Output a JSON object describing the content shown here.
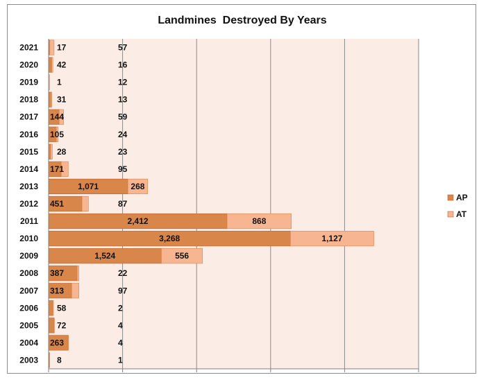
{
  "chart_data": {
    "type": "bar",
    "orientation": "horizontal",
    "stacked": true,
    "title": "Landmines  Destroyed By Years",
    "xlabel": "",
    "ylabel": "",
    "xlim": [
      0,
      5000
    ],
    "x_ticks": [
      "0",
      "1,000",
      "2,000",
      "3,000",
      "4,000",
      "5,000"
    ],
    "x_tick_values": [
      0,
      1000,
      2000,
      3000,
      4000,
      5000
    ],
    "grid": true,
    "legend_position": "right",
    "categories": [
      "2021",
      "2020",
      "2019",
      "2018",
      "2017",
      "2016",
      "2015",
      "2014",
      "2013",
      "2012",
      "2011",
      "2010",
      "2009",
      "2008",
      "2007",
      "2006",
      "2005",
      "2004",
      "2003"
    ],
    "series": [
      {
        "name": "AP",
        "color": "#d9864a",
        "values": [
          17,
          42,
          1,
          31,
          144,
          105,
          28,
          171,
          1071,
          451,
          2412,
          3268,
          1524,
          387,
          313,
          58,
          72,
          263,
          8
        ],
        "labels": [
          "17",
          "42",
          "1",
          "31",
          "144",
          "105",
          "28",
          "171",
          "1,071",
          "451",
          "2,412",
          "3,268",
          "1,524",
          "387",
          "313",
          "58",
          "72",
          "263",
          "8"
        ]
      },
      {
        "name": "AT",
        "color": "#f7b591",
        "values": [
          57,
          16,
          12,
          13,
          59,
          24,
          23,
          95,
          268,
          87,
          868,
          1127,
          556,
          22,
          97,
          2,
          4,
          4,
          1
        ],
        "labels": [
          "57",
          "16",
          "12",
          "13",
          "59",
          "24",
          "23",
          "95",
          "268",
          "87",
          "868",
          "1,127",
          "556",
          "22",
          "97",
          "2",
          "4",
          "4",
          "1"
        ]
      }
    ]
  }
}
